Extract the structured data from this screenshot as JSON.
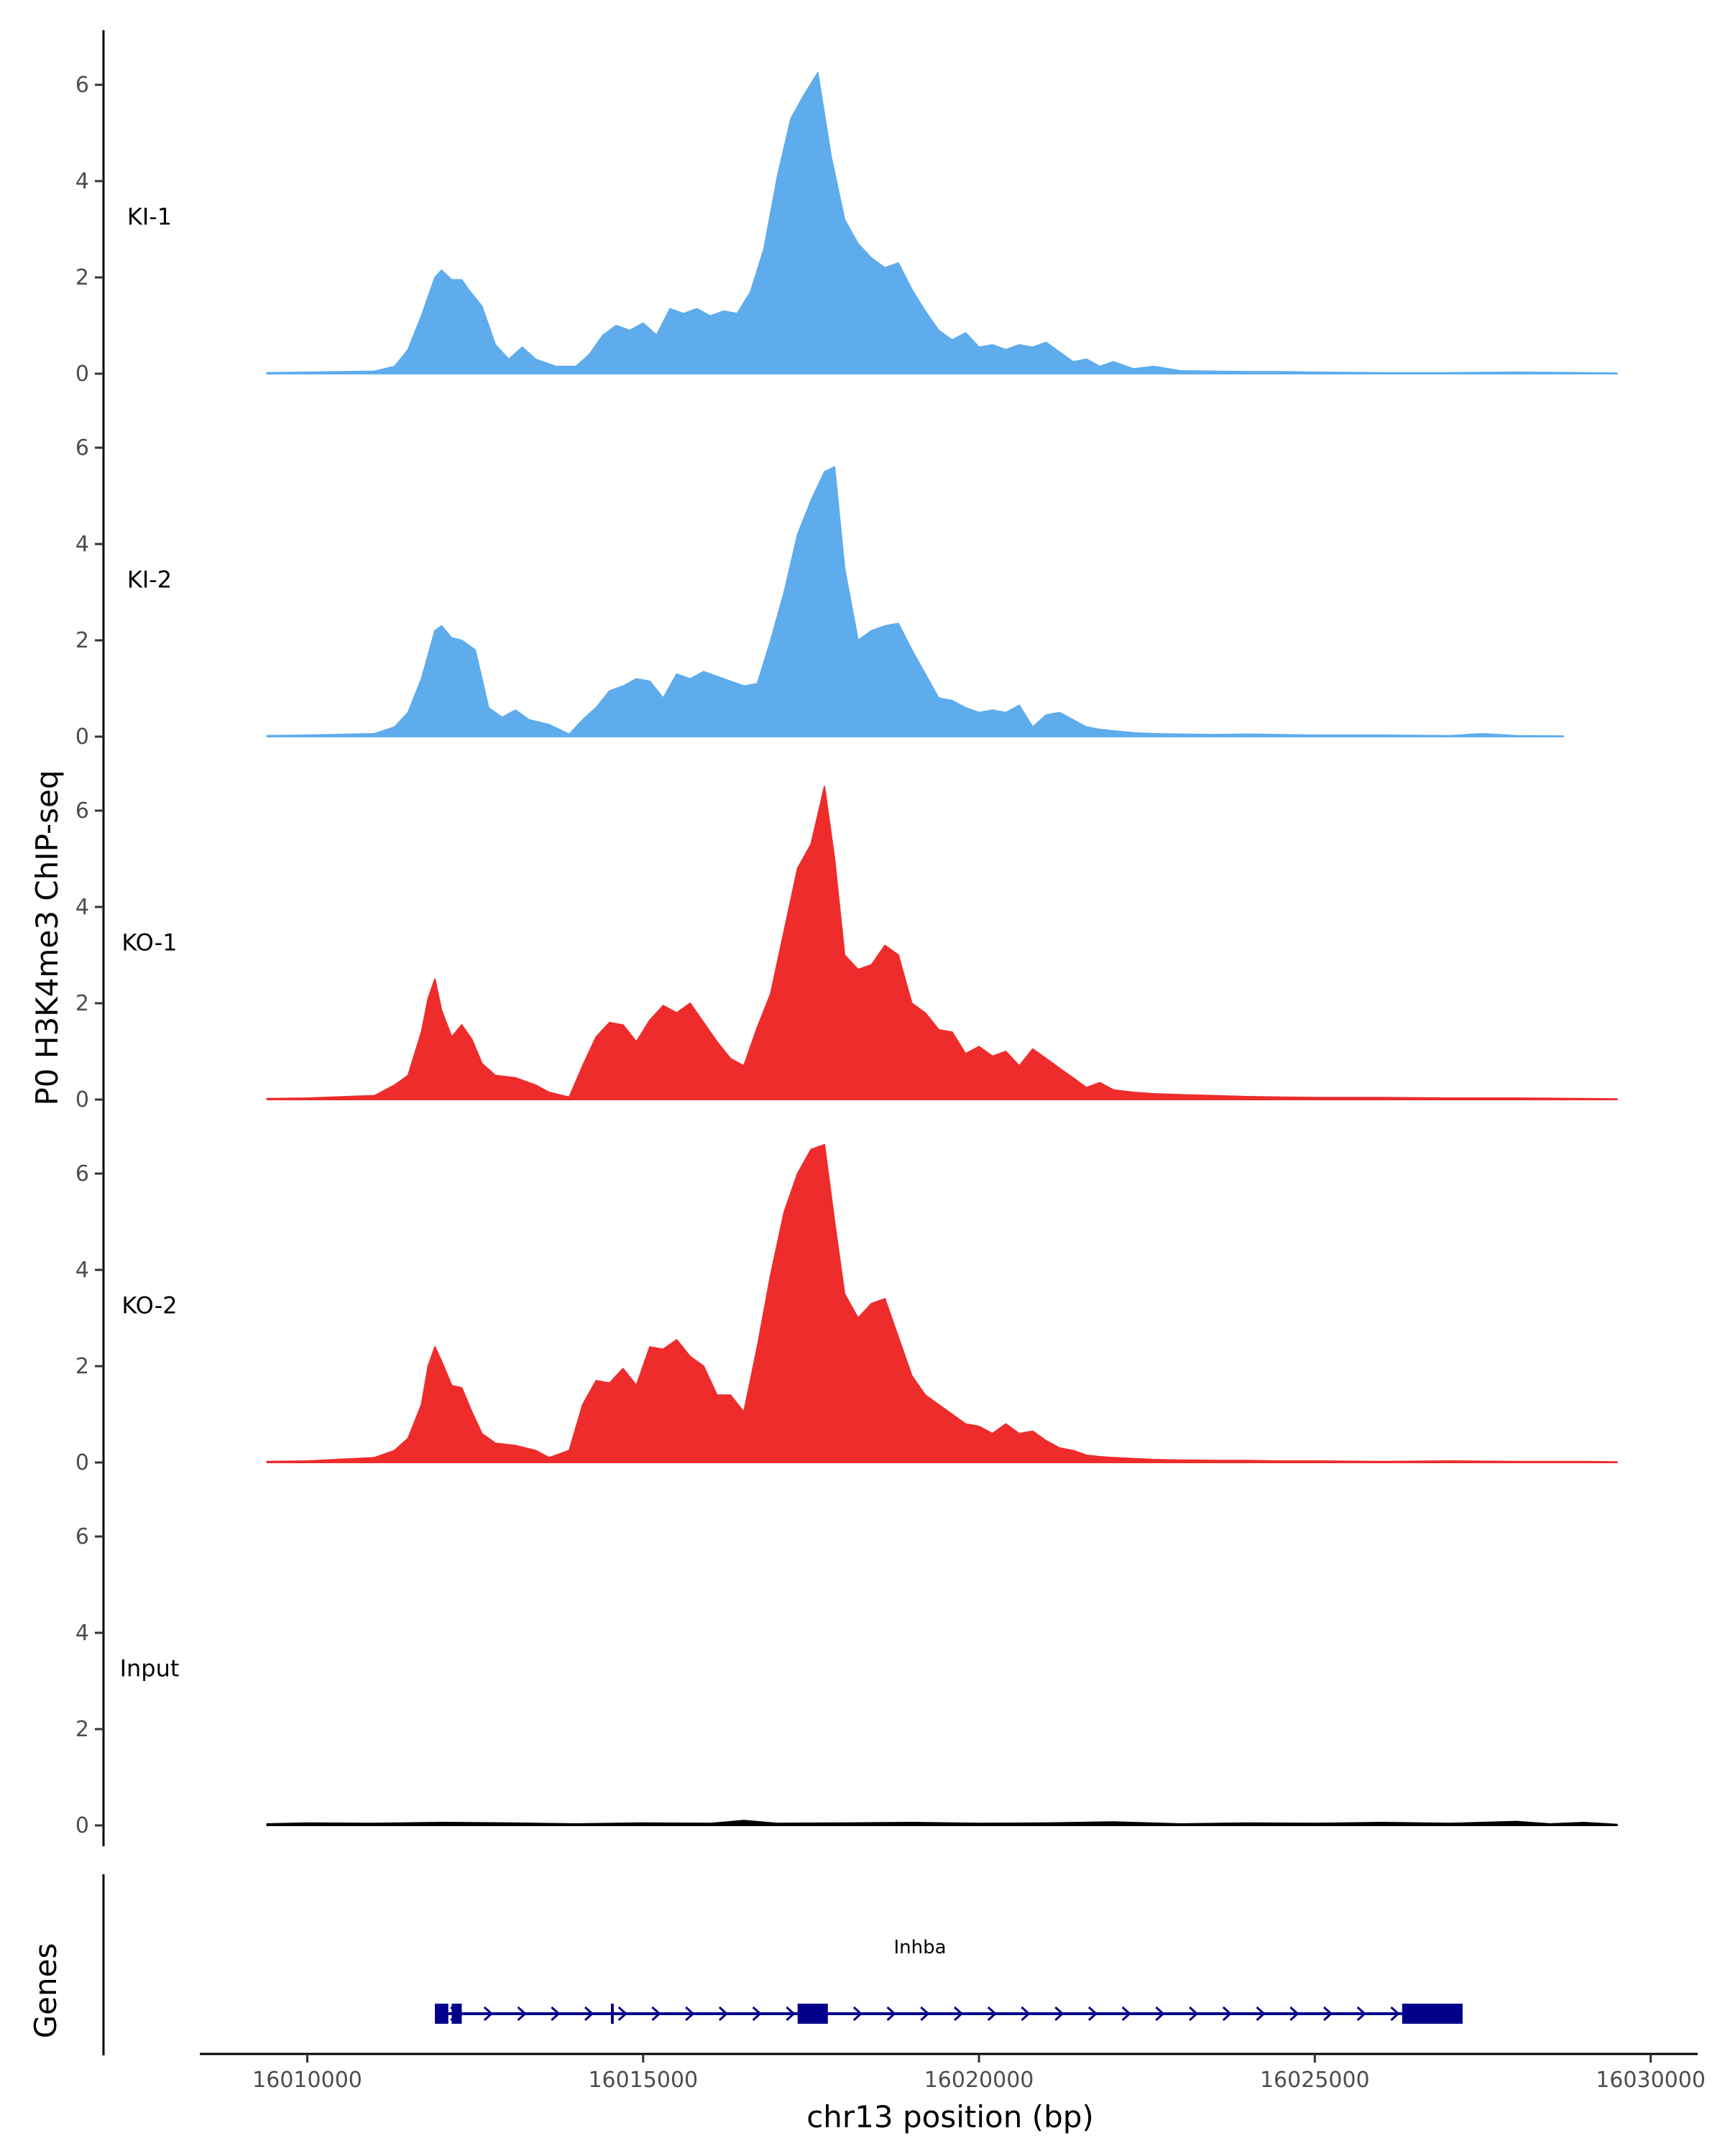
{
  "chart_data": {
    "type": "area",
    "ylabel": "P0 H3K4me3 ChIP-seq",
    "xlabel": "chr13 position (bp)",
    "genes_label": "Genes",
    "xlim": [
      16008400,
      16030700
    ],
    "ylim": [
      0,
      6.8
    ],
    "x_ticks": [
      16010000,
      16015000,
      16020000,
      16025000,
      16030000
    ],
    "x_tick_labels": [
      "16010000",
      "16015000",
      "16020000",
      "16025000",
      "16030000"
    ],
    "y_ticks": [
      0,
      2,
      4,
      6
    ],
    "y_tick_labels": [
      "0",
      "2",
      "4",
      "6"
    ],
    "colors": {
      "KI": "#5eacec",
      "KO": "#ee2c2c",
      "Input": "#000000",
      "gene": "#00008b"
    },
    "tracks": [
      {
        "name": "KI-1",
        "color": "#5eacec",
        "x": [
          16009400,
          16010000,
          16011000,
          16011300,
          16011500,
          16011700,
          16011900,
          16012000,
          16012150,
          16012300,
          16012400,
          16012600,
          16012800,
          16013000,
          16013200,
          16013400,
          16013700,
          16014000,
          16014200,
          16014400,
          16014600,
          16014800,
          16015000,
          16015200,
          16015400,
          16015600,
          16015800,
          16016000,
          16016200,
          16016400,
          16016600,
          16016800,
          16017000,
          16017200,
          16017400,
          16017600,
          16017800,
          16018000,
          16018200,
          16018400,
          16018600,
          16018800,
          16019000,
          16019200,
          16019400,
          16019600,
          16019800,
          16020000,
          16020200,
          16020400,
          16020600,
          16020800,
          16021000,
          16021200,
          16021400,
          16021600,
          16021800,
          16022000,
          16022300,
          16022600,
          16023000,
          16023500,
          16024000,
          16024500,
          16025000,
          16026000,
          16027000,
          16028000,
          16029000,
          16029500
        ],
        "y": [
          0.02,
          0.03,
          0.05,
          0.15,
          0.5,
          1.2,
          2.0,
          2.15,
          1.95,
          1.95,
          1.75,
          1.4,
          0.6,
          0.3,
          0.55,
          0.3,
          0.15,
          0.15,
          0.4,
          0.8,
          1.0,
          0.9,
          1.05,
          0.8,
          1.35,
          1.25,
          1.35,
          1.2,
          1.3,
          1.25,
          1.7,
          2.6,
          4.1,
          5.3,
          5.8,
          6.25,
          4.5,
          3.2,
          2.7,
          2.4,
          2.2,
          2.3,
          1.75,
          1.3,
          0.9,
          0.7,
          0.85,
          0.55,
          0.6,
          0.5,
          0.6,
          0.55,
          0.65,
          0.45,
          0.25,
          0.3,
          0.15,
          0.25,
          0.1,
          0.15,
          0.06,
          0.05,
          0.04,
          0.04,
          0.03,
          0.02,
          0.02,
          0.03,
          0.02,
          0.01
        ]
      },
      {
        "name": "KI-2",
        "color": "#5eacec",
        "x": [
          16009400,
          16010000,
          16011000,
          16011300,
          16011500,
          16011700,
          16011900,
          16012000,
          16012150,
          16012300,
          16012500,
          16012700,
          16012900,
          16013100,
          16013300,
          16013600,
          16013900,
          16014100,
          16014300,
          16014500,
          16014700,
          16014900,
          16015100,
          16015300,
          16015500,
          16015700,
          16015900,
          16016100,
          16016300,
          16016500,
          16016700,
          16016900,
          16017100,
          16017300,
          16017500,
          16017700,
          16017850,
          16018000,
          16018200,
          16018400,
          16018600,
          16018800,
          16019000,
          16019200,
          16019400,
          16019600,
          16019800,
          16020000,
          16020200,
          16020400,
          16020600,
          16020800,
          16021000,
          16021200,
          16021400,
          16021600,
          16021800,
          16022000,
          16022300,
          16022600,
          16023000,
          16023500,
          16024000,
          16025000,
          16026000,
          16027000,
          16027500,
          16028000,
          16028700
        ],
        "y": [
          0.02,
          0.03,
          0.06,
          0.2,
          0.5,
          1.2,
          2.2,
          2.3,
          2.05,
          2.0,
          1.8,
          0.6,
          0.4,
          0.55,
          0.35,
          0.25,
          0.05,
          0.35,
          0.6,
          0.95,
          1.05,
          1.2,
          1.15,
          0.8,
          1.3,
          1.2,
          1.35,
          1.25,
          1.15,
          1.05,
          1.1,
          2.0,
          3.0,
          4.2,
          4.9,
          5.5,
          5.6,
          3.5,
          2.0,
          2.2,
          2.3,
          2.35,
          1.8,
          1.3,
          0.8,
          0.75,
          0.6,
          0.5,
          0.55,
          0.5,
          0.65,
          0.2,
          0.45,
          0.5,
          0.35,
          0.2,
          0.15,
          0.12,
          0.08,
          0.06,
          0.05,
          0.04,
          0.05,
          0.03,
          0.03,
          0.02,
          0.06,
          0.02,
          0.01
        ]
      },
      {
        "name": "KO-1",
        "color": "#ee2c2c",
        "x": [
          16009400,
          16010000,
          16011000,
          16011300,
          16011500,
          16011700,
          16011800,
          16011900,
          16012000,
          16012150,
          16012300,
          16012450,
          16012600,
          16012800,
          16013100,
          16013400,
          16013600,
          16013900,
          16014100,
          16014300,
          16014500,
          16014700,
          16014900,
          16015100,
          16015300,
          16015500,
          16015700,
          16015900,
          16016100,
          16016300,
          16016500,
          16016700,
          16016900,
          16017100,
          16017300,
          16017500,
          16017700,
          16017850,
          16018000,
          16018200,
          16018400,
          16018600,
          16018800,
          16019000,
          16019200,
          16019400,
          16019600,
          16019800,
          16020000,
          16020200,
          16020400,
          16020600,
          16020800,
          16021000,
          16021200,
          16021400,
          16021600,
          16021800,
          16022000,
          16022300,
          16022600,
          16023000,
          16023500,
          16024000,
          16024500,
          16025000,
          16026000,
          16027000,
          16028000,
          16029000,
          16029500
        ],
        "y": [
          0.02,
          0.03,
          0.08,
          0.3,
          0.5,
          1.4,
          2.1,
          2.5,
          1.85,
          1.3,
          1.55,
          1.25,
          0.75,
          0.5,
          0.45,
          0.3,
          0.15,
          0.05,
          0.7,
          1.3,
          1.6,
          1.55,
          1.2,
          1.65,
          1.95,
          1.8,
          2.0,
          1.6,
          1.2,
          0.85,
          0.7,
          1.5,
          2.2,
          3.5,
          4.8,
          5.3,
          6.5,
          5.0,
          3.0,
          2.7,
          2.8,
          3.2,
          3.0,
          2.0,
          1.8,
          1.45,
          1.4,
          0.95,
          1.1,
          0.9,
          1.0,
          0.7,
          1.05,
          0.85,
          0.65,
          0.45,
          0.25,
          0.35,
          0.2,
          0.15,
          0.12,
          0.1,
          0.08,
          0.06,
          0.05,
          0.04,
          0.04,
          0.03,
          0.03,
          0.02,
          0.01
        ]
      },
      {
        "name": "KO-2",
        "color": "#ee2c2c",
        "x": [
          16009400,
          16010000,
          16011000,
          16011300,
          16011500,
          16011700,
          16011800,
          16011900,
          16012000,
          16012150,
          16012300,
          16012450,
          16012600,
          16012800,
          16013100,
          16013400,
          16013600,
          16013900,
          16014100,
          16014300,
          16014500,
          16014700,
          16014900,
          16015100,
          16015300,
          16015500,
          16015700,
          16015900,
          16016100,
          16016300,
          16016500,
          16016700,
          16016900,
          16017100,
          16017300,
          16017500,
          16017700,
          16017850,
          16018000,
          16018200,
          16018400,
          16018600,
          16018800,
          16019000,
          16019200,
          16019400,
          16019600,
          16019800,
          16020000,
          16020200,
          16020400,
          16020600,
          16020800,
          16021000,
          16021200,
          16021400,
          16021600,
          16021800,
          16022000,
          16022300,
          16022600,
          16023000,
          16023500,
          16024000,
          16024500,
          16025000,
          16026000,
          16027000,
          16028000,
          16029000,
          16029500
        ],
        "y": [
          0.02,
          0.03,
          0.1,
          0.25,
          0.5,
          1.2,
          2.0,
          2.4,
          2.1,
          1.6,
          1.55,
          1.05,
          0.6,
          0.4,
          0.35,
          0.25,
          0.1,
          0.25,
          1.2,
          1.7,
          1.65,
          1.95,
          1.6,
          2.4,
          2.35,
          2.55,
          2.2,
          2.0,
          1.4,
          1.4,
          1.05,
          2.4,
          3.9,
          5.2,
          6.0,
          6.5,
          6.6,
          5.0,
          3.5,
          3.0,
          3.3,
          3.4,
          2.6,
          1.8,
          1.4,
          1.2,
          1.0,
          0.8,
          0.75,
          0.6,
          0.8,
          0.6,
          0.65,
          0.45,
          0.3,
          0.25,
          0.15,
          0.12,
          0.1,
          0.08,
          0.06,
          0.05,
          0.04,
          0.04,
          0.03,
          0.03,
          0.02,
          0.03,
          0.02,
          0.02,
          0.01
        ]
      },
      {
        "name": "Input",
        "color": "#000000",
        "x": [
          16009400,
          16010000,
          16011000,
          16012000,
          16013000,
          16014000,
          16015000,
          16016000,
          16016500,
          16017000,
          16018000,
          16019000,
          16020000,
          16021000,
          16022000,
          16023000,
          16024000,
          16025000,
          16026000,
          16027000,
          16028000,
          16028500,
          16029000,
          16029500
        ],
        "y": [
          0.03,
          0.05,
          0.04,
          0.06,
          0.05,
          0.03,
          0.05,
          0.04,
          0.1,
          0.04,
          0.05,
          0.06,
          0.04,
          0.05,
          0.07,
          0.03,
          0.05,
          0.04,
          0.06,
          0.04,
          0.08,
          0.03,
          0.06,
          0.02
        ]
      }
    ],
    "gene": {
      "name": "Inhba",
      "start": 16011900,
      "end": 16027200,
      "exons": [
        [
          16011900,
          16012100
        ],
        [
          16012150,
          16012300
        ],
        [
          16014520,
          16014560
        ],
        [
          16017300,
          16017750
        ],
        [
          16026300,
          16027200
        ]
      ]
    }
  }
}
